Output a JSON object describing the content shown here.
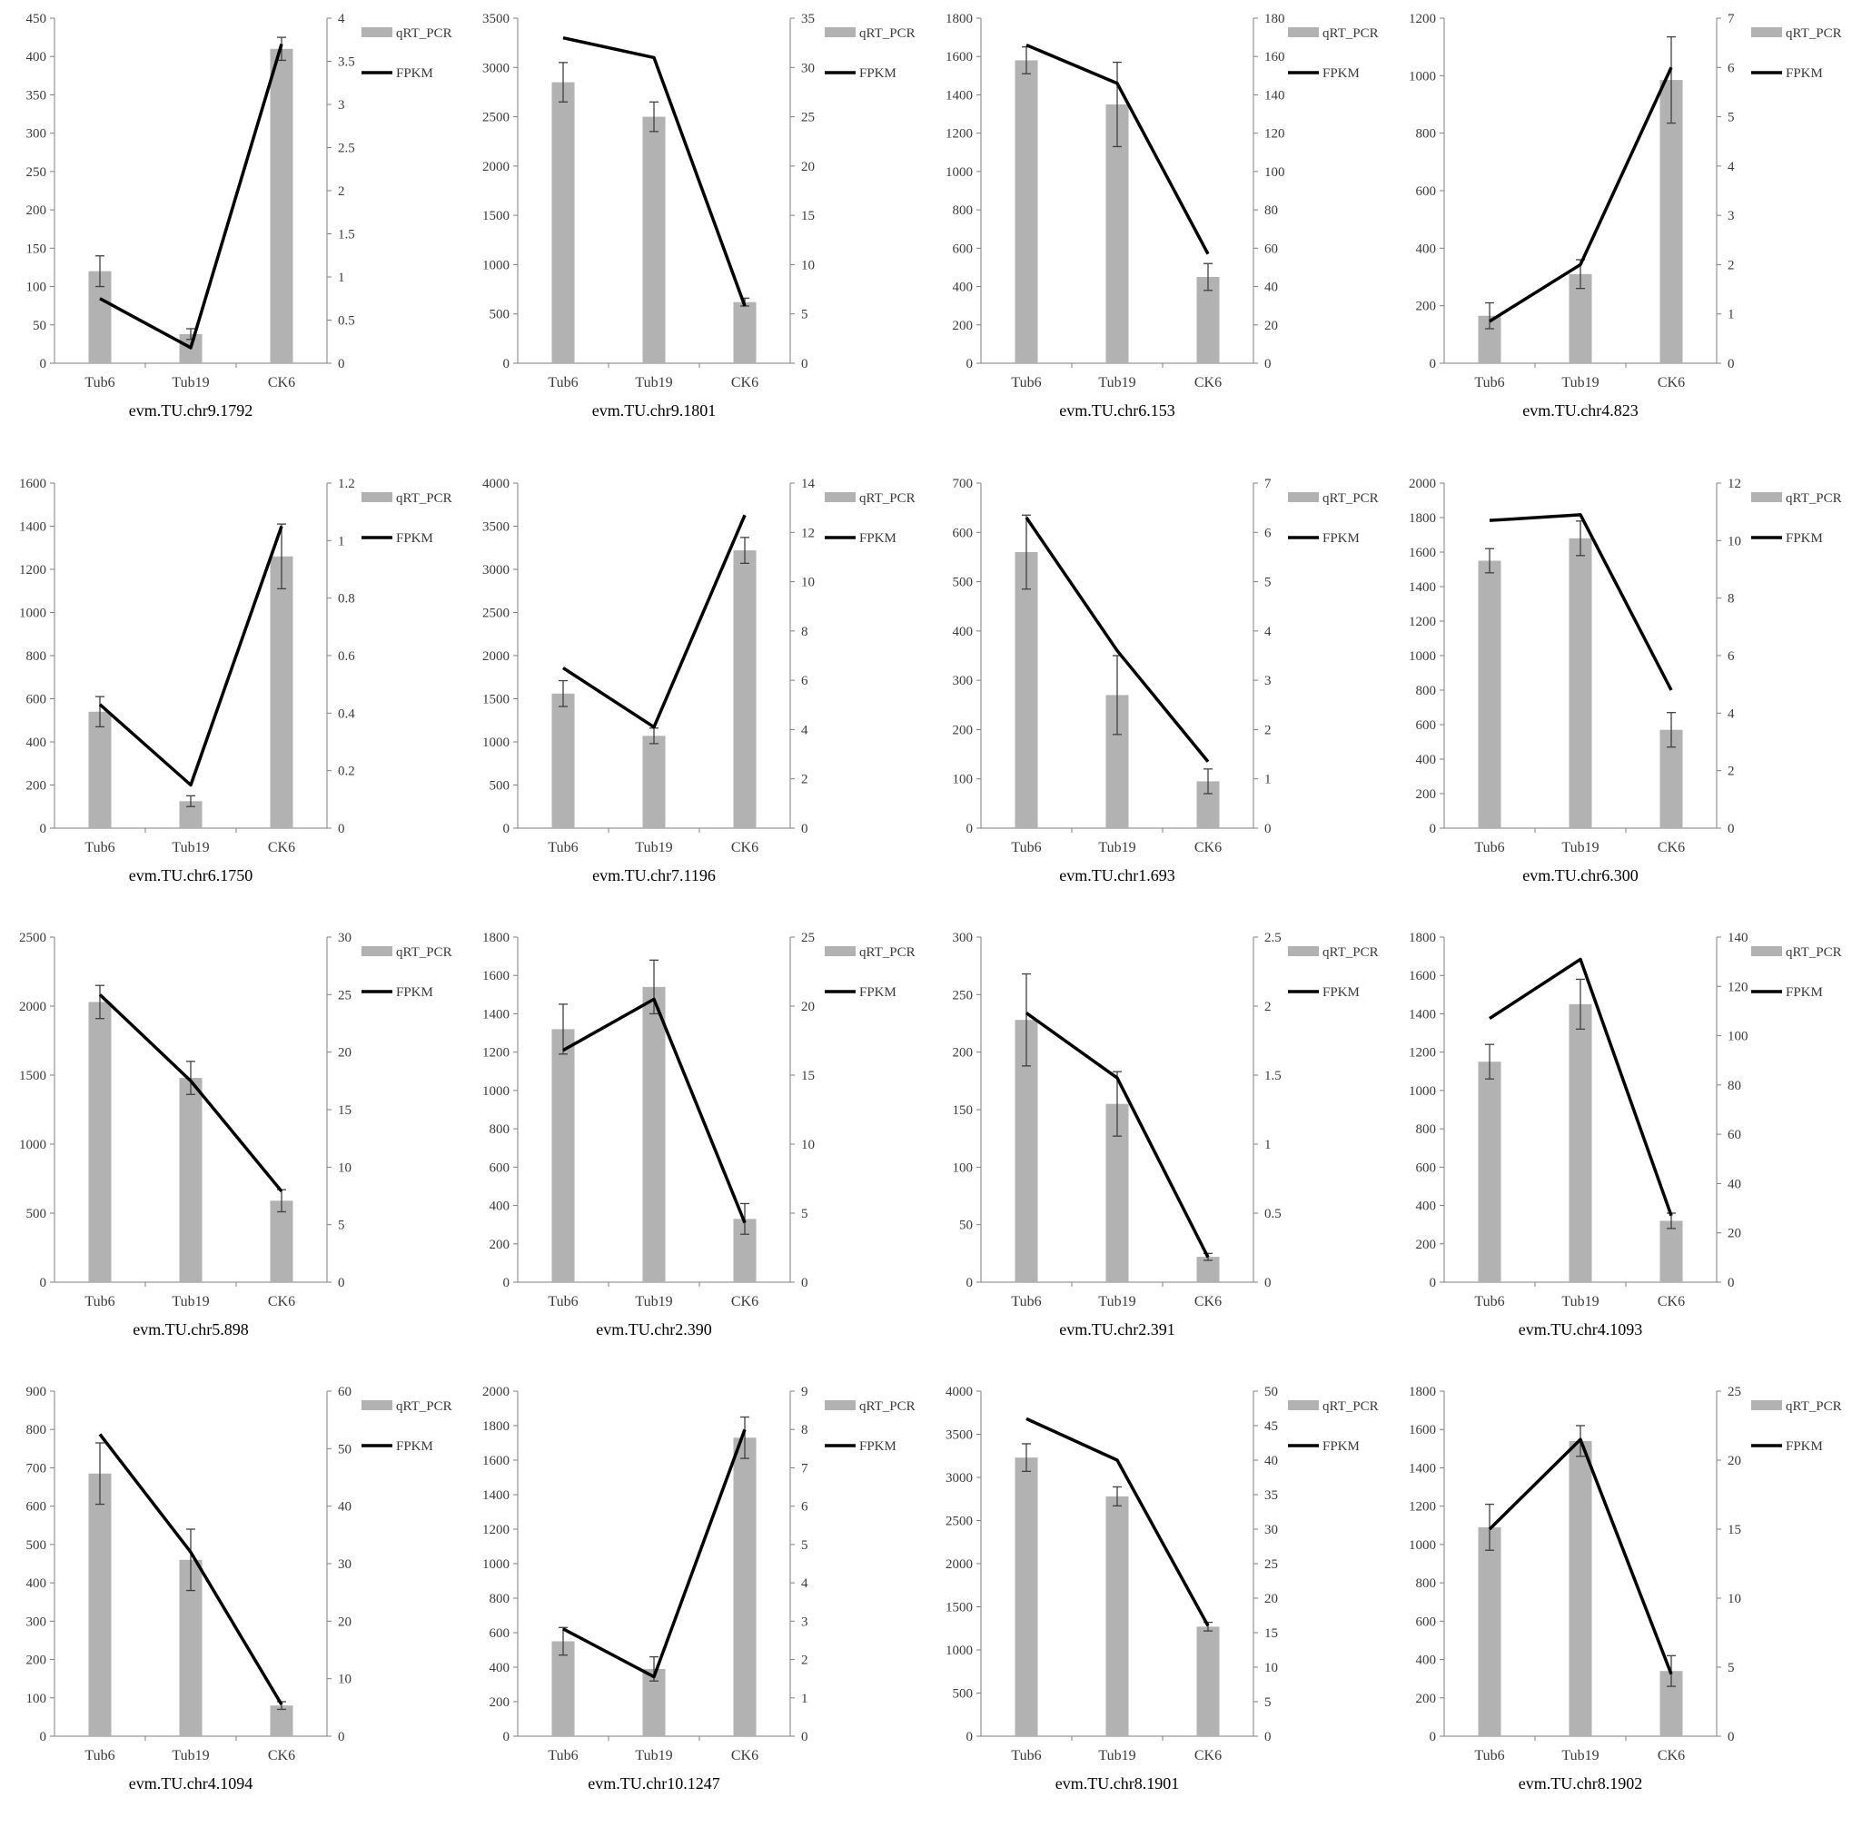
{
  "colors": {
    "bar": "#b2b2b2",
    "line": "#000000",
    "axis": "#7f7f7f",
    "error": "#404040"
  },
  "legend": {
    "bar_label": "qRT_PCR",
    "line_label": "FPKM"
  },
  "chart_data": [
    {
      "type": "bar",
      "title": "evm.TU.chr9.1792",
      "categories": [
        "Tub6",
        "Tub19",
        "CK6"
      ],
      "left_axis": {
        "ylim": [
          0,
          450
        ],
        "ticks": [
          0,
          50,
          100,
          150,
          200,
          250,
          300,
          350,
          400,
          450
        ]
      },
      "right_axis": {
        "ylim": [
          0,
          4
        ],
        "ticks": [
          0,
          0.5,
          1,
          1.5,
          2,
          2.5,
          3,
          3.5,
          4
        ]
      },
      "series": [
        {
          "name": "qRT_PCR",
          "axis": "left",
          "values": [
            120,
            38,
            410
          ],
          "errors": [
            20,
            7,
            15
          ]
        },
        {
          "name": "FPKM",
          "axis": "right",
          "values": [
            0.75,
            0.18,
            3.7
          ]
        }
      ]
    },
    {
      "type": "bar",
      "title": "evm.TU.chr9.1801",
      "categories": [
        "Tub6",
        "Tub19",
        "CK6"
      ],
      "left_axis": {
        "ylim": [
          0,
          3500
        ],
        "ticks": [
          0,
          500,
          1000,
          1500,
          2000,
          2500,
          3000,
          3500
        ]
      },
      "right_axis": {
        "ylim": [
          0,
          35
        ],
        "ticks": [
          0,
          5,
          10,
          15,
          20,
          25,
          30,
          35
        ]
      },
      "series": [
        {
          "name": "qRT_PCR",
          "axis": "left",
          "values": [
            2850,
            2500,
            620
          ],
          "errors": [
            200,
            150,
            40
          ]
        },
        {
          "name": "FPKM",
          "axis": "right",
          "values": [
            33,
            31,
            5.8
          ]
        }
      ]
    },
    {
      "type": "bar",
      "title": "evm.TU.chr6.153",
      "categories": [
        "Tub6",
        "Tub19",
        "CK6"
      ],
      "left_axis": {
        "ylim": [
          0,
          1800
        ],
        "ticks": [
          0,
          200,
          400,
          600,
          800,
          1000,
          1200,
          1400,
          1600,
          1800
        ]
      },
      "right_axis": {
        "ylim": [
          0,
          180
        ],
        "ticks": [
          0,
          20,
          40,
          60,
          80,
          100,
          120,
          140,
          160,
          180
        ]
      },
      "series": [
        {
          "name": "qRT_PCR",
          "axis": "left",
          "values": [
            1580,
            1350,
            450
          ],
          "errors": [
            70,
            220,
            70
          ]
        },
        {
          "name": "FPKM",
          "axis": "right",
          "values": [
            166,
            146,
            57
          ]
        }
      ]
    },
    {
      "type": "bar",
      "title": "evm.TU.chr4.823",
      "categories": [
        "Tub6",
        "Tub19",
        "CK6"
      ],
      "left_axis": {
        "ylim": [
          0,
          1200
        ],
        "ticks": [
          0,
          200,
          400,
          600,
          800,
          1000,
          1200
        ]
      },
      "right_axis": {
        "ylim": [
          0,
          7
        ],
        "ticks": [
          0,
          1,
          2,
          3,
          4,
          5,
          6,
          7
        ]
      },
      "series": [
        {
          "name": "qRT_PCR",
          "axis": "left",
          "values": [
            165,
            310,
            985
          ],
          "errors": [
            45,
            50,
            150
          ]
        },
        {
          "name": "FPKM",
          "axis": "right",
          "values": [
            0.85,
            2.0,
            6.0
          ]
        }
      ]
    },
    {
      "type": "bar",
      "title": "evm.TU.chr6.1750",
      "categories": [
        "Tub6",
        "Tub19",
        "CK6"
      ],
      "left_axis": {
        "ylim": [
          0,
          1600
        ],
        "ticks": [
          0,
          200,
          400,
          600,
          800,
          1000,
          1200,
          1400,
          1600
        ]
      },
      "right_axis": {
        "ylim": [
          0,
          1.2
        ],
        "ticks": [
          0,
          0.2,
          0.4,
          0.6,
          0.8,
          1,
          1.2
        ]
      },
      "series": [
        {
          "name": "qRT_PCR",
          "axis": "left",
          "values": [
            540,
            125,
            1260
          ],
          "errors": [
            70,
            25,
            150
          ]
        },
        {
          "name": "FPKM",
          "axis": "right",
          "values": [
            0.43,
            0.15,
            1.05
          ]
        }
      ]
    },
    {
      "type": "bar",
      "title": "evm.TU.chr7.1196",
      "categories": [
        "Tub6",
        "Tub19",
        "CK6"
      ],
      "left_axis": {
        "ylim": [
          0,
          4000
        ],
        "ticks": [
          0,
          500,
          1000,
          1500,
          2000,
          2500,
          3000,
          3500,
          4000
        ]
      },
      "right_axis": {
        "ylim": [
          0,
          14
        ],
        "ticks": [
          0,
          2,
          4,
          6,
          8,
          10,
          12,
          14
        ]
      },
      "series": [
        {
          "name": "qRT_PCR",
          "axis": "left",
          "values": [
            1560,
            1070,
            3220
          ],
          "errors": [
            150,
            90,
            150
          ]
        },
        {
          "name": "FPKM",
          "axis": "right",
          "values": [
            6.5,
            4.1,
            12.7
          ]
        }
      ]
    },
    {
      "type": "bar",
      "title": "evm.TU.chr1.693",
      "categories": [
        "Tub6",
        "Tub19",
        "CK6"
      ],
      "left_axis": {
        "ylim": [
          0,
          700
        ],
        "ticks": [
          0,
          100,
          200,
          300,
          400,
          500,
          600,
          700
        ]
      },
      "right_axis": {
        "ylim": [
          0,
          7
        ],
        "ticks": [
          0,
          1,
          2,
          3,
          4,
          5,
          6,
          7
        ]
      },
      "series": [
        {
          "name": "qRT_PCR",
          "axis": "left",
          "values": [
            560,
            270,
            95
          ],
          "errors": [
            75,
            80,
            25
          ]
        },
        {
          "name": "FPKM",
          "axis": "right",
          "values": [
            6.3,
            3.6,
            1.35
          ]
        }
      ]
    },
    {
      "type": "bar",
      "title": "evm.TU.chr6.300",
      "categories": [
        "Tub6",
        "Tub19",
        "CK6"
      ],
      "left_axis": {
        "ylim": [
          0,
          2000
        ],
        "ticks": [
          0,
          200,
          400,
          600,
          800,
          1000,
          1200,
          1400,
          1600,
          1800,
          2000
        ]
      },
      "right_axis": {
        "ylim": [
          0,
          12
        ],
        "ticks": [
          0,
          2,
          4,
          6,
          8,
          10,
          12
        ]
      },
      "series": [
        {
          "name": "qRT_PCR",
          "axis": "left",
          "values": [
            1550,
            1680,
            570
          ],
          "errors": [
            70,
            100,
            100
          ]
        },
        {
          "name": "FPKM",
          "axis": "right",
          "values": [
            10.7,
            10.9,
            4.8
          ]
        }
      ]
    },
    {
      "type": "bar",
      "title": "evm.TU.chr5.898",
      "categories": [
        "Tub6",
        "Tub19",
        "CK6"
      ],
      "left_axis": {
        "ylim": [
          0,
          2500
        ],
        "ticks": [
          0,
          500,
          1000,
          1500,
          2000,
          2500
        ]
      },
      "right_axis": {
        "ylim": [
          0,
          30
        ],
        "ticks": [
          0,
          5,
          10,
          15,
          20,
          25,
          30
        ]
      },
      "series": [
        {
          "name": "qRT_PCR",
          "axis": "left",
          "values": [
            2030,
            1480,
            590
          ],
          "errors": [
            120,
            120,
            80
          ]
        },
        {
          "name": "FPKM",
          "axis": "right",
          "values": [
            25,
            17.5,
            7.9
          ]
        }
      ]
    },
    {
      "type": "bar",
      "title": "evm.TU.chr2.390",
      "categories": [
        "Tub6",
        "Tub19",
        "CK6"
      ],
      "left_axis": {
        "ylim": [
          0,
          1800
        ],
        "ticks": [
          0,
          200,
          400,
          600,
          800,
          1000,
          1200,
          1400,
          1600,
          1800
        ]
      },
      "right_axis": {
        "ylim": [
          0,
          25
        ],
        "ticks": [
          0,
          5,
          10,
          15,
          20,
          25
        ]
      },
      "series": [
        {
          "name": "qRT_PCR",
          "axis": "left",
          "values": [
            1320,
            1540,
            330
          ],
          "errors": [
            130,
            140,
            80
          ]
        },
        {
          "name": "FPKM",
          "axis": "right",
          "values": [
            16.8,
            20.5,
            4.3
          ]
        }
      ]
    },
    {
      "type": "bar",
      "title": "evm.TU.chr2.391",
      "categories": [
        "Tub6",
        "Tub19",
        "CK6"
      ],
      "left_axis": {
        "ylim": [
          0,
          300
        ],
        "ticks": [
          0,
          50,
          100,
          150,
          200,
          250,
          300
        ]
      },
      "right_axis": {
        "ylim": [
          0,
          2.5
        ],
        "ticks": [
          0,
          0.5,
          1,
          1.5,
          2,
          2.5
        ]
      },
      "series": [
        {
          "name": "qRT_PCR",
          "axis": "left",
          "values": [
            228,
            155,
            22
          ],
          "errors": [
            40,
            28,
            3
          ]
        },
        {
          "name": "FPKM",
          "axis": "right",
          "values": [
            1.95,
            1.48,
            0.18
          ]
        }
      ]
    },
    {
      "type": "bar",
      "title": "evm.TU.chr4.1093",
      "categories": [
        "Tub6",
        "Tub19",
        "CK6"
      ],
      "left_axis": {
        "ylim": [
          0,
          1800
        ],
        "ticks": [
          0,
          200,
          400,
          600,
          800,
          1000,
          1200,
          1400,
          1600,
          1800
        ]
      },
      "right_axis": {
        "ylim": [
          0,
          140
        ],
        "ticks": [
          0,
          20,
          40,
          60,
          80,
          100,
          120,
          140
        ]
      },
      "series": [
        {
          "name": "qRT_PCR",
          "axis": "left",
          "values": [
            1150,
            1450,
            320
          ],
          "errors": [
            90,
            130,
            40
          ]
        },
        {
          "name": "FPKM",
          "axis": "right",
          "values": [
            107,
            131,
            27
          ]
        }
      ]
    },
    {
      "type": "bar",
      "title": "evm.TU.chr4.1094",
      "categories": [
        "Tub6",
        "Tub19",
        "CK6"
      ],
      "left_axis": {
        "ylim": [
          0,
          900
        ],
        "ticks": [
          0,
          100,
          200,
          300,
          400,
          500,
          600,
          700,
          800,
          900
        ]
      },
      "right_axis": {
        "ylim": [
          0,
          60
        ],
        "ticks": [
          0,
          10,
          20,
          30,
          40,
          50,
          60
        ]
      },
      "series": [
        {
          "name": "qRT_PCR",
          "axis": "left",
          "values": [
            685,
            460,
            80
          ],
          "errors": [
            80,
            80,
            10
          ]
        },
        {
          "name": "FPKM",
          "axis": "right",
          "values": [
            52.5,
            32,
            5.5
          ]
        }
      ]
    },
    {
      "type": "bar",
      "title": "evm.TU.chr10.1247",
      "categories": [
        "Tub6",
        "Tub19",
        "CK6"
      ],
      "left_axis": {
        "ylim": [
          0,
          2000
        ],
        "ticks": [
          0,
          200,
          400,
          600,
          800,
          1000,
          1200,
          1400,
          1600,
          1800,
          2000
        ]
      },
      "right_axis": {
        "ylim": [
          0,
          9
        ],
        "ticks": [
          0,
          1,
          2,
          3,
          4,
          5,
          6,
          7,
          8,
          9
        ]
      },
      "series": [
        {
          "name": "qRT_PCR",
          "axis": "left",
          "values": [
            550,
            390,
            1730
          ],
          "errors": [
            80,
            70,
            120
          ]
        },
        {
          "name": "FPKM",
          "axis": "right",
          "values": [
            2.8,
            1.55,
            8.0
          ]
        }
      ]
    },
    {
      "type": "bar",
      "title": "evm.TU.chr8.1901",
      "categories": [
        "Tub6",
        "Tub19",
        "CK6"
      ],
      "left_axis": {
        "ylim": [
          0,
          4000
        ],
        "ticks": [
          0,
          500,
          1000,
          1500,
          2000,
          2500,
          3000,
          3500,
          4000
        ]
      },
      "right_axis": {
        "ylim": [
          0,
          50
        ],
        "ticks": [
          0,
          5,
          10,
          15,
          20,
          25,
          30,
          35,
          40,
          45,
          50
        ]
      },
      "series": [
        {
          "name": "qRT_PCR",
          "axis": "left",
          "values": [
            3230,
            2780,
            1270
          ],
          "errors": [
            160,
            110,
            50
          ]
        },
        {
          "name": "FPKM",
          "axis": "right",
          "values": [
            46,
            40,
            16
          ]
        }
      ]
    },
    {
      "type": "bar",
      "title": "evm.TU.chr8.1902",
      "categories": [
        "Tub6",
        "Tub19",
        "CK6"
      ],
      "left_axis": {
        "ylim": [
          0,
          1800
        ],
        "ticks": [
          0,
          200,
          400,
          600,
          800,
          1000,
          1200,
          1400,
          1600,
          1800
        ]
      },
      "right_axis": {
        "ylim": [
          0,
          25
        ],
        "ticks": [
          0,
          5,
          10,
          15,
          20,
          25
        ]
      },
      "series": [
        {
          "name": "qRT_PCR",
          "axis": "left",
          "values": [
            1090,
            1540,
            340
          ],
          "errors": [
            120,
            80,
            80
          ]
        },
        {
          "name": "FPKM",
          "axis": "right",
          "values": [
            15,
            21.5,
            4.5
          ]
        }
      ]
    }
  ]
}
